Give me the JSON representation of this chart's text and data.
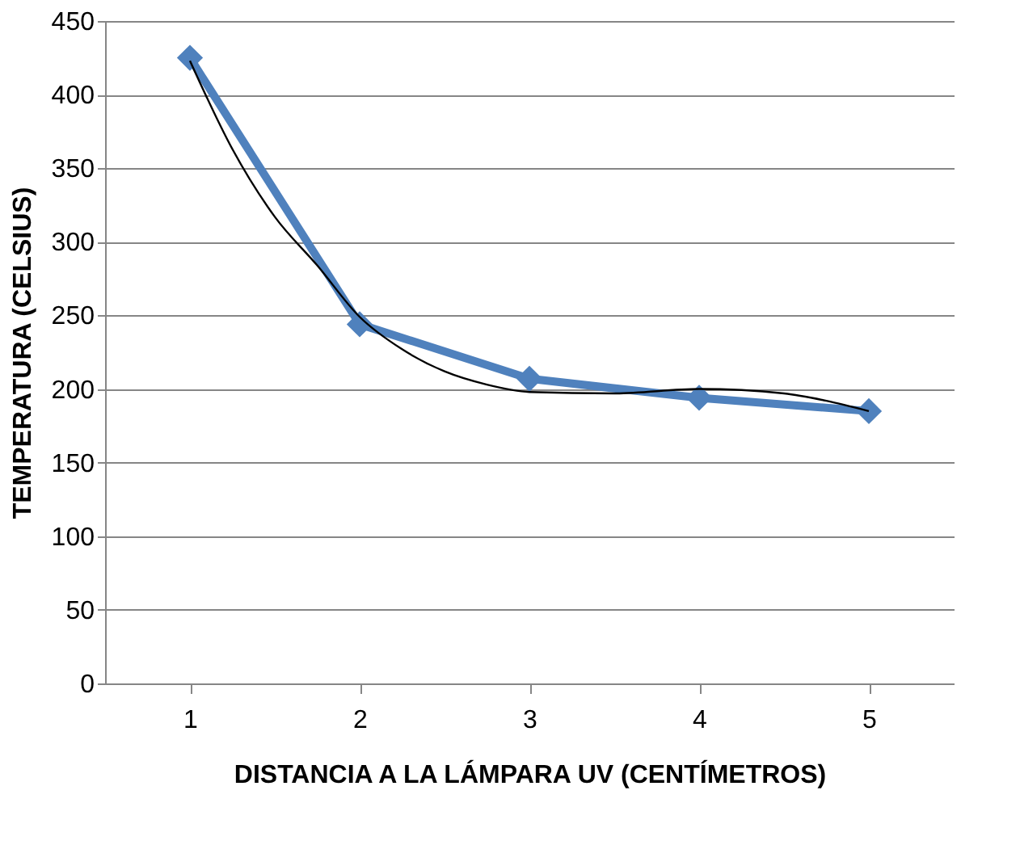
{
  "chart_data": {
    "type": "line",
    "xlabel": "DISTANCIA A LA LÁMPARA UV (CENTÍMETROS)",
    "ylabel": "TEMPERATURA (CELSIUS)",
    "x": [
      1,
      2,
      3,
      4,
      5
    ],
    "xlim": [
      0.5,
      5.5
    ],
    "xticks": [
      1,
      2,
      3,
      4,
      5
    ],
    "ylim": [
      0,
      450
    ],
    "yticks": [
      0,
      50,
      100,
      150,
      200,
      250,
      300,
      350,
      400,
      450
    ],
    "grid": "y",
    "series": [
      {
        "color": "#4f81bd",
        "marker": "diamond",
        "values": [
          425,
          244,
          207,
          194,
          185
        ]
      },
      {
        "type": "line",
        "color": "#000000",
        "marker": "none",
        "x": [
          1,
          1.25,
          1.5,
          1.75,
          2,
          2.25,
          2.5,
          2.75,
          3,
          3.5,
          4,
          4.5,
          4.75,
          5
        ],
        "values": [
          423,
          363,
          317,
          284,
          249,
          227,
          212,
          203,
          198,
          197,
          200,
          197,
          192,
          185
        ]
      }
    ]
  }
}
